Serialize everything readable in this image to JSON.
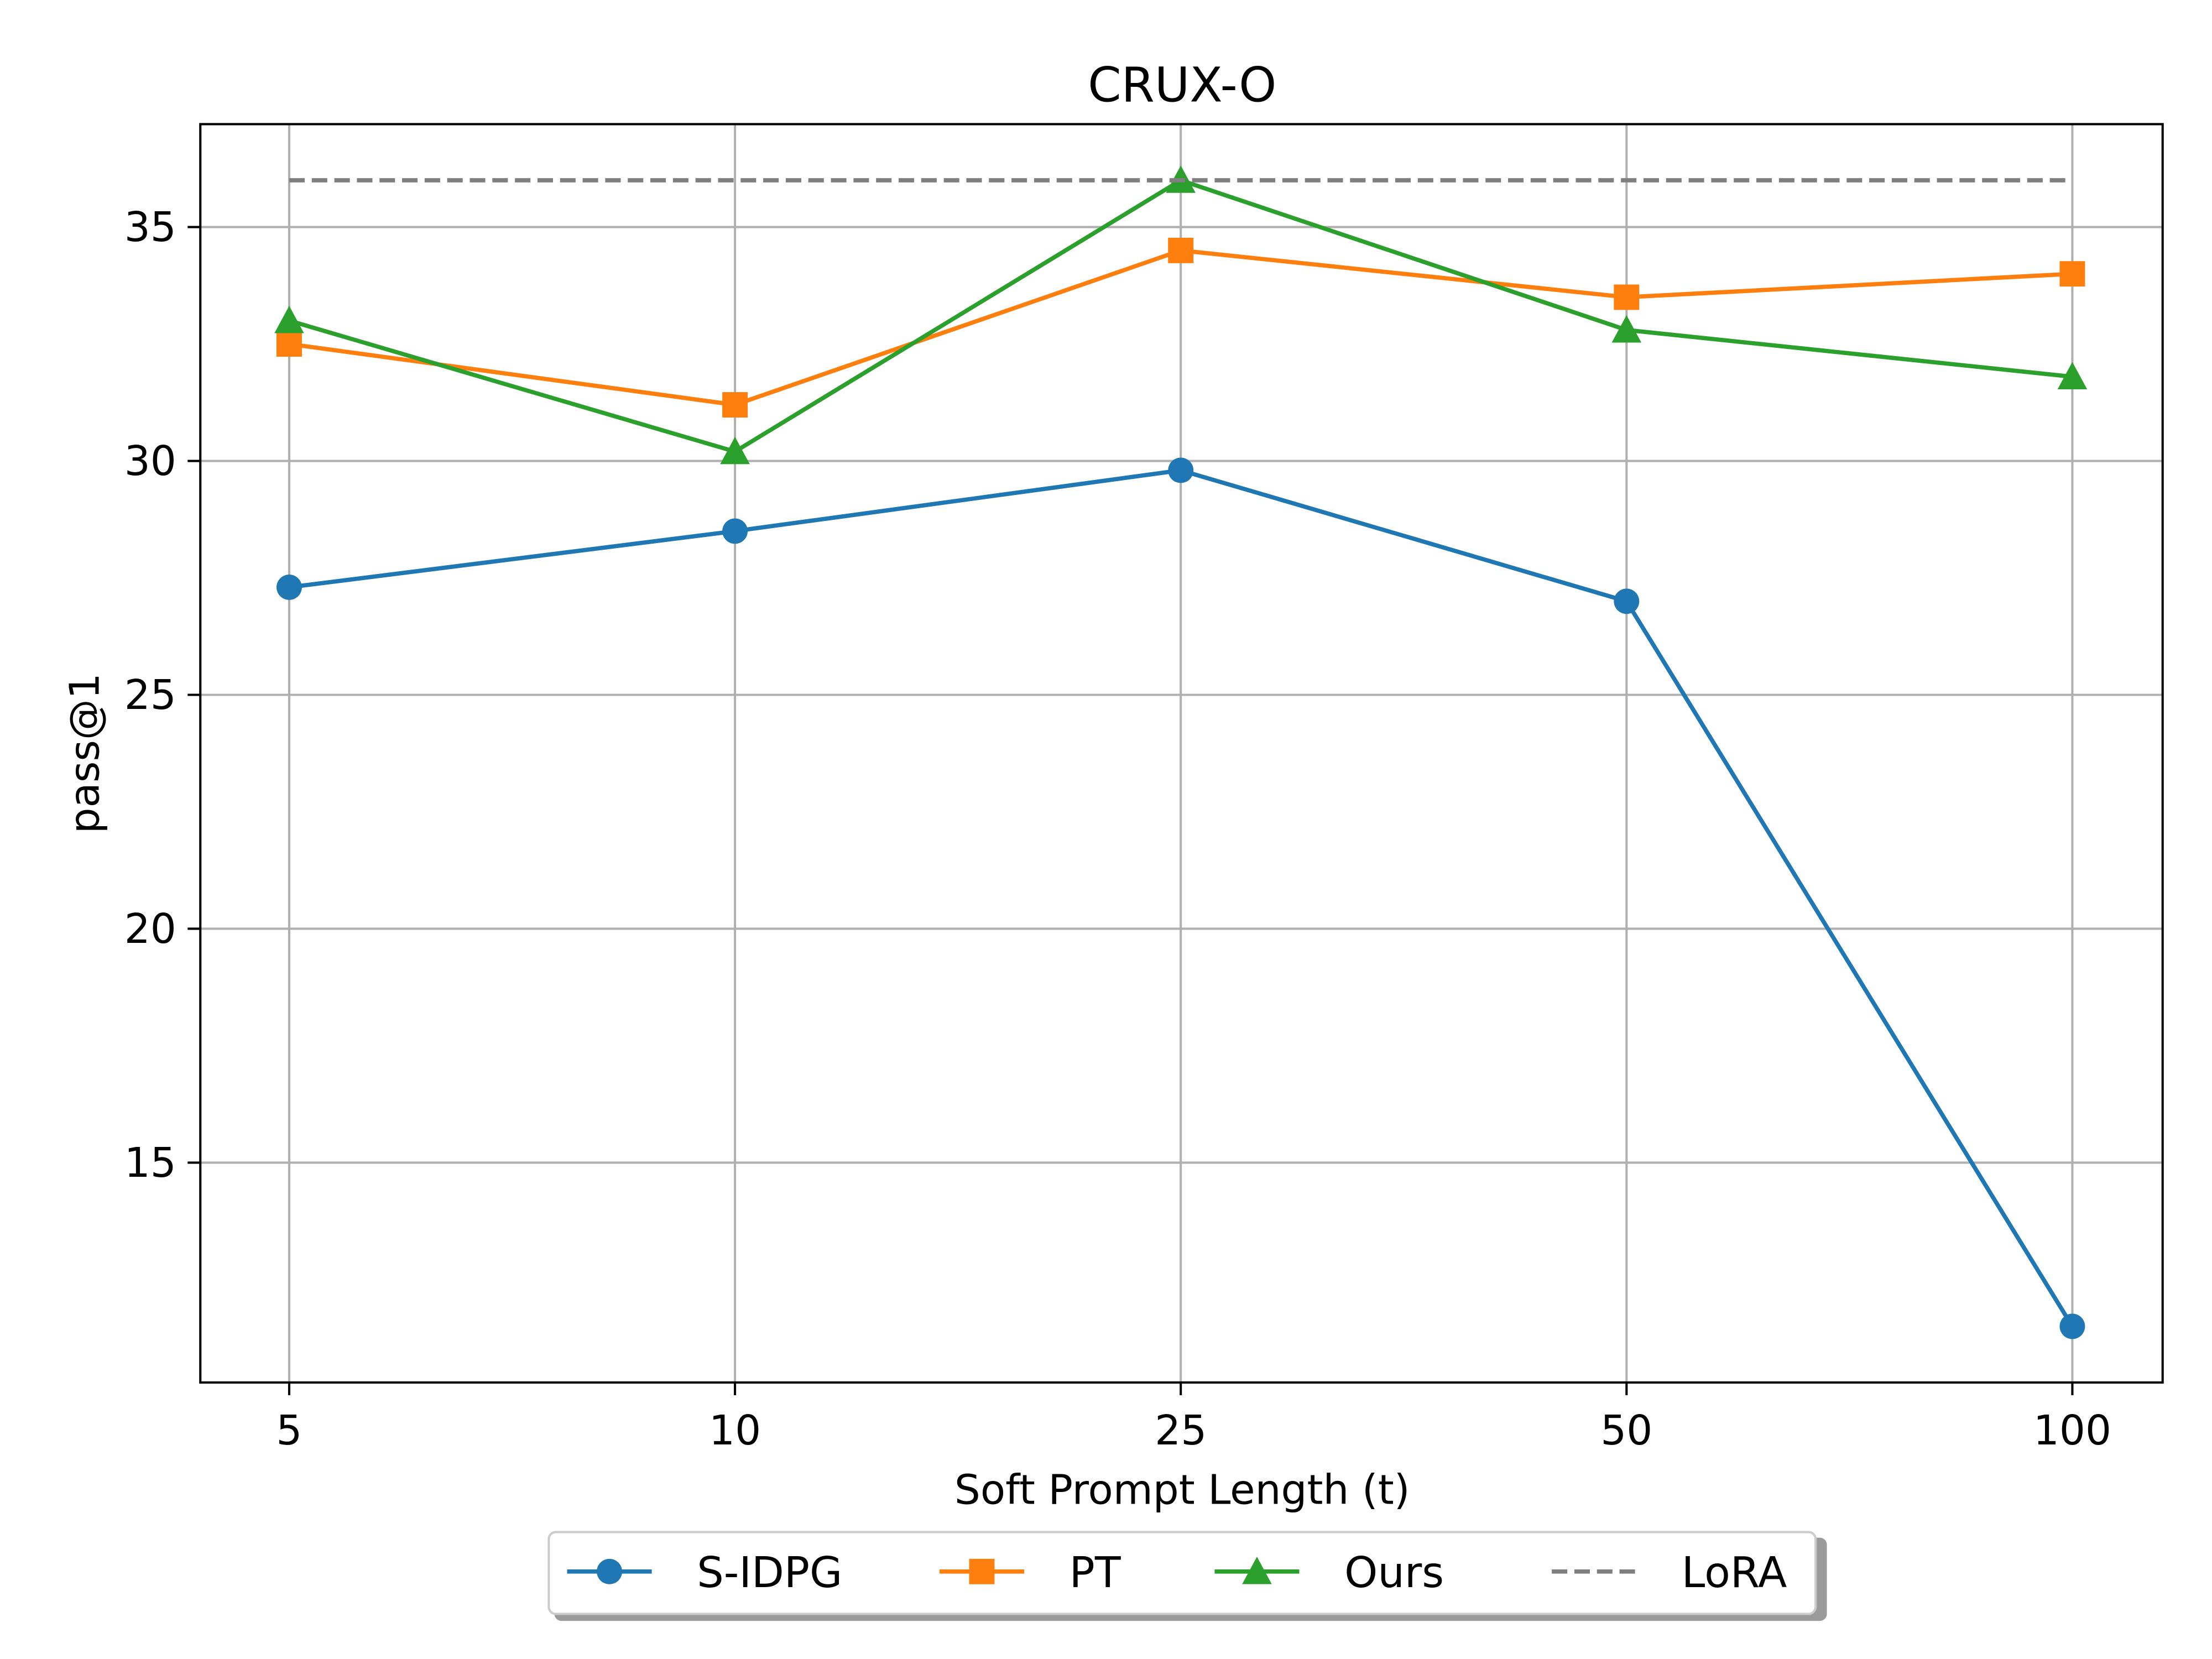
{
  "chart_data": {
    "type": "line",
    "title": "CRUX-O",
    "xlabel": "Soft Prompt Length (t)",
    "ylabel": "pass@1",
    "categories": [
      "5",
      "10",
      "25",
      "50",
      "100"
    ],
    "yticks": [
      15,
      20,
      25,
      30,
      35
    ],
    "ylim": [
      10.3,
      37.2
    ],
    "grid": true,
    "legend_position": "bottom-center",
    "series": [
      {
        "name": "S-IDPG",
        "color": "#1f77b4",
        "marker": "circle",
        "linestyle": "solid",
        "values": [
          27.3,
          28.5,
          29.8,
          27.0,
          11.5
        ]
      },
      {
        "name": "PT",
        "color": "#ff7f0e",
        "marker": "square",
        "linestyle": "solid",
        "values": [
          32.5,
          31.2,
          34.5,
          33.5,
          34.0
        ]
      },
      {
        "name": "Ours",
        "color": "#2ca02c",
        "marker": "triangle",
        "linestyle": "solid",
        "values": [
          33.0,
          30.2,
          36.0,
          32.8,
          31.8
        ]
      },
      {
        "name": "LoRA",
        "color": "#7f7f7f",
        "marker": "none",
        "linestyle": "dashed",
        "values": [
          36.0,
          36.0,
          36.0,
          36.0,
          36.0
        ]
      }
    ]
  }
}
